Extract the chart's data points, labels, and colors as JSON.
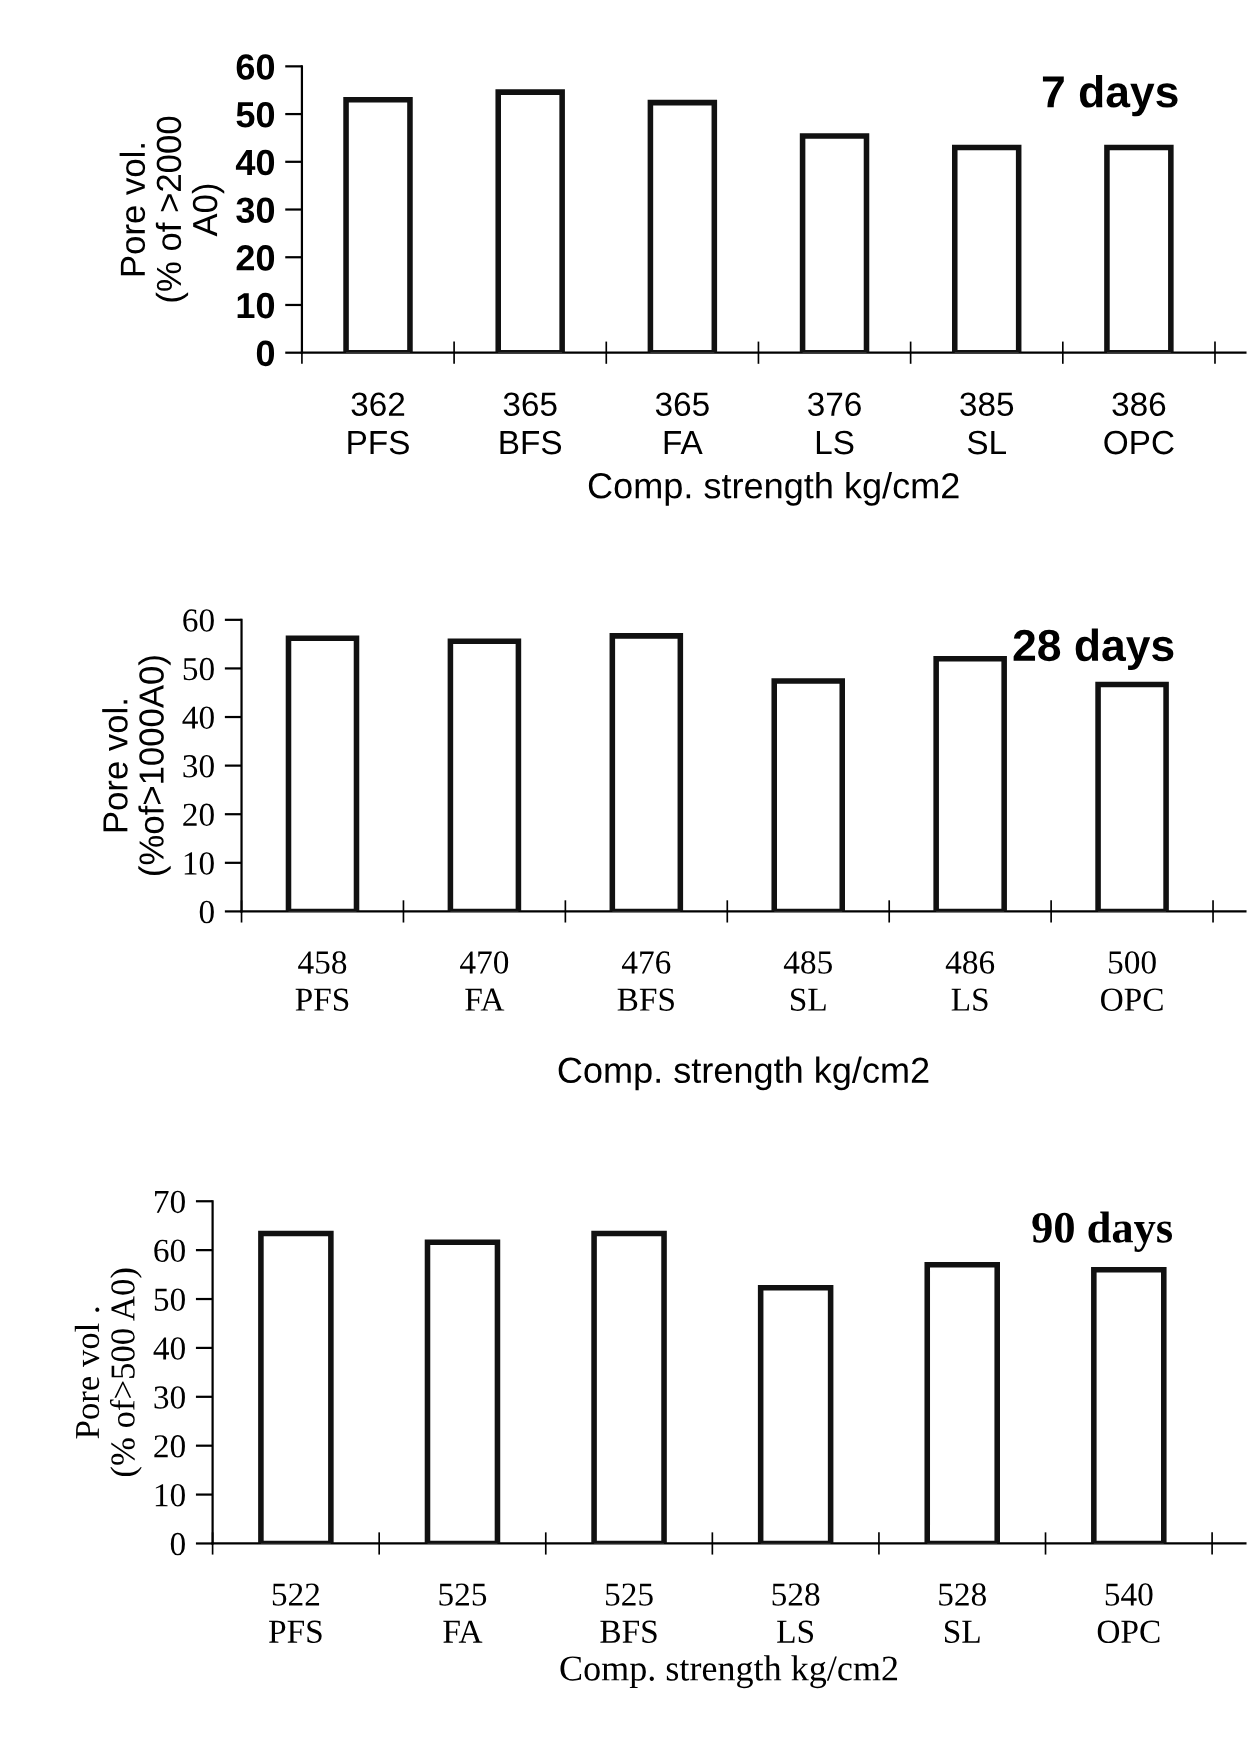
{
  "chart_data": [
    {
      "type": "bar",
      "title": "7 days",
      "xlabel": "Comp. strength kg/cm2",
      "ylabel": "Pore vol.\n(% of >2000\nA0)",
      "categories": [
        "362\nPFS",
        "365\nBFS",
        "365\nFA",
        "376\nLS",
        "385\nSL",
        "386\nOPC"
      ],
      "values": [
        53,
        54.6,
        52.4,
        45.4,
        43,
        43
      ],
      "color": "#ffffff",
      "ylim": [
        0,
        60
      ],
      "yticks": [
        0,
        10,
        20,
        30,
        40,
        50,
        60
      ],
      "grid": false,
      "legend": false
    },
    {
      "type": "bar",
      "title": "28 days",
      "xlabel": "Comp. strength kg/cm2",
      "ylabel": "Pore vol.\n(%of>1000A0)",
      "categories": [
        "458\nPFS",
        "470\nFA",
        "476\nBFS",
        "485\nSL",
        "486\nLS",
        "500\nOPC"
      ],
      "values": [
        56.2,
        55.6,
        56.7,
        47.4,
        52,
        46.7
      ],
      "color": "#ffffff",
      "ylim": [
        0,
        60
      ],
      "yticks": [
        0,
        10,
        20,
        30,
        40,
        50,
        60
      ],
      "grid": false,
      "legend": false
    },
    {
      "type": "bar",
      "title": "90 days",
      "xlabel": "Comp. strength kg/cm2",
      "ylabel": "Pore vol .\n(% of>500 A0)",
      "categories": [
        "522\nPFS",
        "525\nFA",
        "525\nBFS",
        "528\nLS",
        "528\nSL",
        "540\nOPC"
      ],
      "values": [
        63.4,
        61.6,
        63.4,
        52.3,
        57,
        56
      ],
      "color": "#ffffff",
      "ylim": [
        0,
        70
      ],
      "yticks": [
        0,
        10,
        20,
        30,
        40,
        50,
        60,
        70
      ],
      "grid": false,
      "legend": false
    }
  ]
}
